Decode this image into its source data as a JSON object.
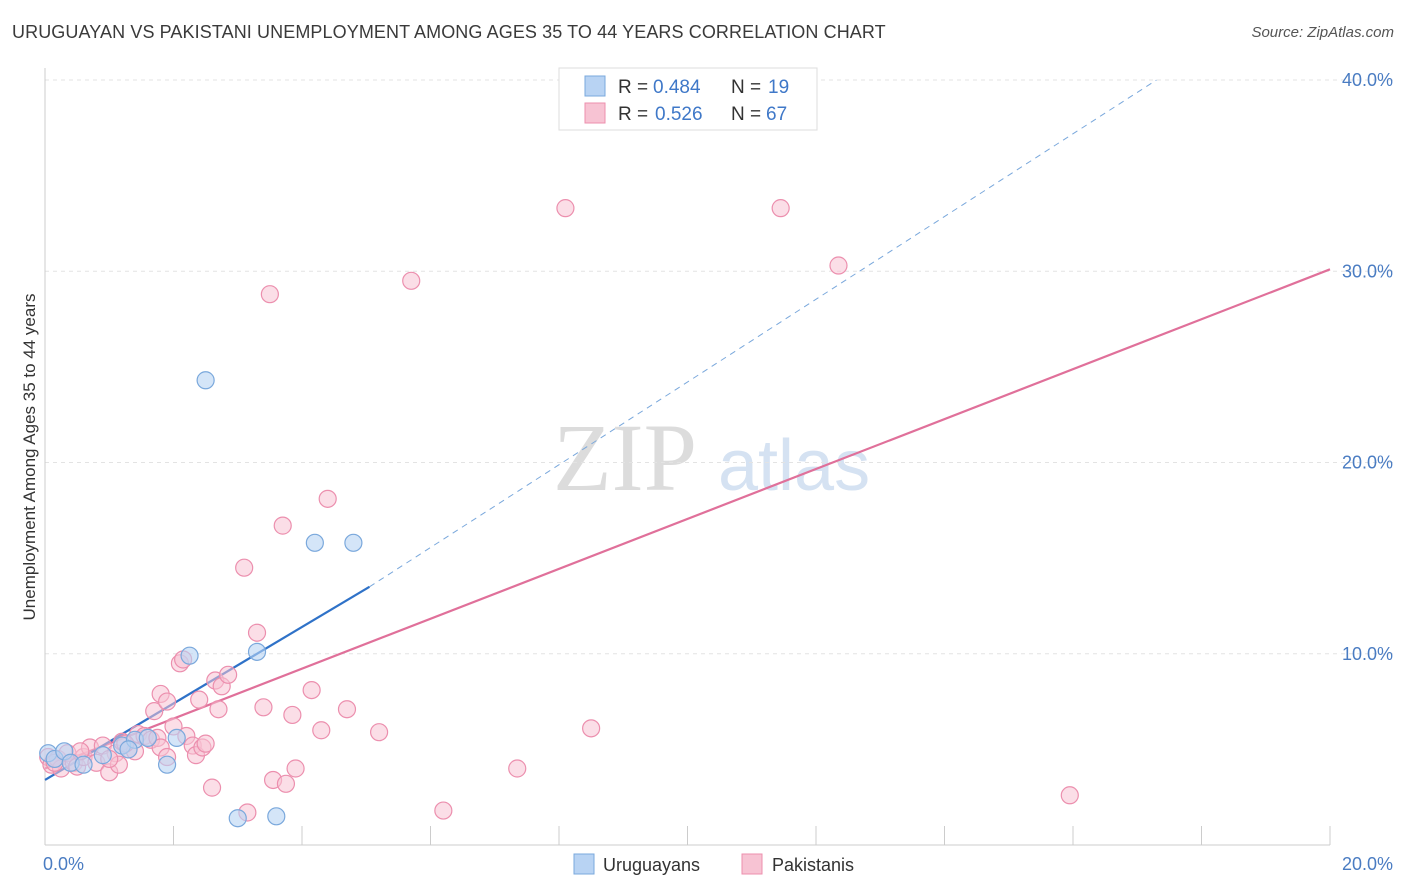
{
  "title": "URUGUAYAN VS PAKISTANI UNEMPLOYMENT AMONG AGES 35 TO 44 YEARS CORRELATION CHART",
  "source": "Source: ZipAtlas.com",
  "watermark": {
    "zip": "ZIP",
    "atlas": "atlas"
  },
  "colors": {
    "uruguayan_fill": "#b8d3f3",
    "uruguayan_stroke": "#7aa8dc",
    "uruguayan_line": "#2f72c8",
    "pakistani_fill": "#f7c3d3",
    "pakistani_stroke": "#ec8fae",
    "pakistani_line": "#e0709a",
    "grid": "#e3e3e3",
    "tick_text": "#4a7cc2"
  },
  "legend": {
    "rows": [
      {
        "r_label": "R =",
        "r_value": "0.484",
        "n_label": "N =",
        "n_value": "19"
      },
      {
        "r_label": "R =",
        "r_value": "0.526",
        "n_label": "N =",
        "n_value": "67"
      }
    ]
  },
  "chart_data": {
    "type": "scatter",
    "title": "URUGUAYAN VS PAKISTANI UNEMPLOYMENT AMONG AGES 35 TO 44 YEARS CORRELATION CHART",
    "xlabel": "",
    "ylabel": "Unemployment Among Ages 35 to 44 years",
    "xlim": [
      0,
      20
    ],
    "ylim": [
      0,
      40
    ],
    "x_tick_labels": [
      "0.0%",
      "20.0%"
    ],
    "y_ticks": [
      10,
      20,
      30,
      40
    ],
    "y_tick_labels": [
      "10.0%",
      "20.0%",
      "30.0%",
      "40.0%"
    ],
    "grid": true,
    "legend_position": "top-center",
    "series": [
      {
        "name": "Uruguayans",
        "points": [
          [
            0.05,
            4.8
          ],
          [
            0.15,
            4.5
          ],
          [
            0.3,
            4.9
          ],
          [
            0.4,
            4.3
          ],
          [
            0.6,
            4.2
          ],
          [
            0.9,
            4.7
          ],
          [
            1.2,
            5.2
          ],
          [
            1.4,
            5.5
          ],
          [
            1.6,
            5.6
          ],
          [
            1.9,
            4.2
          ],
          [
            2.05,
            5.6
          ],
          [
            2.25,
            9.9
          ],
          [
            2.5,
            24.3
          ],
          [
            3.3,
            10.1
          ],
          [
            4.2,
            15.8
          ],
          [
            4.8,
            15.8
          ],
          [
            3.0,
            1.4
          ],
          [
            3.6,
            1.5
          ],
          [
            1.3,
            5.0
          ]
        ],
        "trend": {
          "x": [
            0.0,
            5.05
          ],
          "y": [
            3.4,
            13.5
          ],
          "extension_x": [
            5.05,
            17.3
          ],
          "extension_y": [
            13.5,
            40.0
          ]
        }
      },
      {
        "name": "Pakistanis",
        "points": [
          [
            0.05,
            4.6
          ],
          [
            0.1,
            4.2
          ],
          [
            0.2,
            4.5
          ],
          [
            0.25,
            4.0
          ],
          [
            0.35,
            4.8
          ],
          [
            0.45,
            4.3
          ],
          [
            0.5,
            4.1
          ],
          [
            0.6,
            4.6
          ],
          [
            0.7,
            5.1
          ],
          [
            0.8,
            4.3
          ],
          [
            0.9,
            5.2
          ],
          [
            1.0,
            3.8
          ],
          [
            1.1,
            4.8
          ],
          [
            1.15,
            4.2
          ],
          [
            1.2,
            5.4
          ],
          [
            1.3,
            5.0
          ],
          [
            1.4,
            4.9
          ],
          [
            1.45,
            5.8
          ],
          [
            1.55,
            5.7
          ],
          [
            1.65,
            5.5
          ],
          [
            1.7,
            7.0
          ],
          [
            1.75,
            5.6
          ],
          [
            1.8,
            5.1
          ],
          [
            1.8,
            7.9
          ],
          [
            1.9,
            4.6
          ],
          [
            1.9,
            7.5
          ],
          [
            2.0,
            6.2
          ],
          [
            2.1,
            9.5
          ],
          [
            2.15,
            9.7
          ],
          [
            2.2,
            5.7
          ],
          [
            2.3,
            5.2
          ],
          [
            2.35,
            4.7
          ],
          [
            2.4,
            7.6
          ],
          [
            2.45,
            5.1
          ],
          [
            2.5,
            5.3
          ],
          [
            2.6,
            3.0
          ],
          [
            2.65,
            8.6
          ],
          [
            2.7,
            7.1
          ],
          [
            2.75,
            8.3
          ],
          [
            2.85,
            8.9
          ],
          [
            3.1,
            14.5
          ],
          [
            3.15,
            1.7
          ],
          [
            3.3,
            11.1
          ],
          [
            3.4,
            7.2
          ],
          [
            3.5,
            28.8
          ],
          [
            3.55,
            3.4
          ],
          [
            3.75,
            3.2
          ],
          [
            3.7,
            16.7
          ],
          [
            3.85,
            6.8
          ],
          [
            3.9,
            4.0
          ],
          [
            4.15,
            8.1
          ],
          [
            4.3,
            6.0
          ],
          [
            4.4,
            18.1
          ],
          [
            4.7,
            7.1
          ],
          [
            5.2,
            5.9
          ],
          [
            5.7,
            29.5
          ],
          [
            6.2,
            1.8
          ],
          [
            7.35,
            4.0
          ],
          [
            8.1,
            33.3
          ],
          [
            8.5,
            6.1
          ],
          [
            11.45,
            33.3
          ],
          [
            12.35,
            30.3
          ],
          [
            15.95,
            2.6
          ],
          [
            1.0,
            4.5
          ],
          [
            0.55,
            4.9
          ],
          [
            0.15,
            4.3
          ],
          [
            1.25,
            5.3
          ]
        ],
        "trend": {
          "x": [
            0.0,
            20.0
          ],
          "y": [
            4.0,
            30.1
          ]
        }
      }
    ]
  },
  "bottom_legend": {
    "uruguayans": "Uruguayans",
    "pakistanis": "Pakistanis"
  }
}
